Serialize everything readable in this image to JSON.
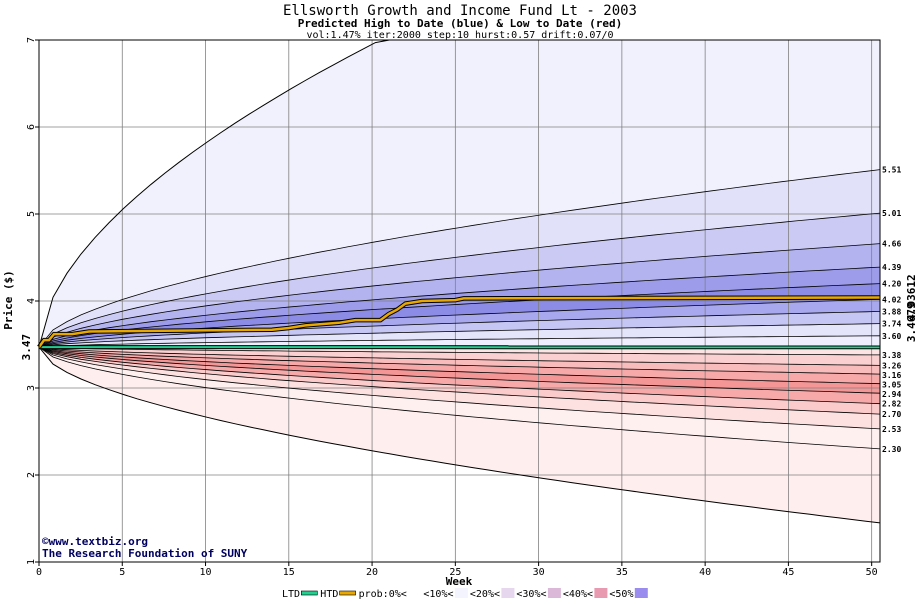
{
  "chart_data": {
    "type": "area",
    "title": "Ellsworth Growth and Income Fund Lt - 2003",
    "subtitle": "Predicted High to Date (blue) &  Low to Date (red)",
    "params": "vol:1.47% iter:2000 step:10 hurst:0.57 drift:0.07/0",
    "xlabel": "Week",
    "ylabel": "Price ($)",
    "xlim": [
      0,
      50.5
    ],
    "ylim": [
      1,
      7
    ],
    "xticks": [
      0,
      5,
      10,
      15,
      20,
      25,
      30,
      35,
      40,
      45,
      50
    ],
    "yticks": [
      1,
      2,
      3,
      4,
      5,
      6,
      7
    ],
    "start_price": 3.47,
    "start_label": "3.47",
    "htd_line": {
      "name": "HTD",
      "label": "4.03612",
      "points": [
        [
          0,
          3.47
        ],
        [
          0.3,
          3.55
        ],
        [
          0.6,
          3.55
        ],
        [
          0.9,
          3.62
        ],
        [
          2,
          3.62
        ],
        [
          3,
          3.65
        ],
        [
          14,
          3.67
        ],
        [
          15,
          3.69
        ],
        [
          16,
          3.72
        ],
        [
          18,
          3.75
        ],
        [
          19,
          3.78
        ],
        [
          20.5,
          3.78
        ],
        [
          21,
          3.85
        ],
        [
          21.5,
          3.9
        ],
        [
          22,
          3.97
        ],
        [
          23,
          4.0
        ],
        [
          25,
          4.01
        ],
        [
          25.5,
          4.03
        ],
        [
          50.5,
          4.04
        ]
      ]
    },
    "ltd_line": {
      "name": "LTD",
      "label": "3.4679",
      "points": [
        [
          0,
          3.47
        ],
        [
          50.5,
          3.4679
        ]
      ]
    },
    "upper_bands": {
      "labels": [
        "5.51",
        "5.01",
        "4.66",
        "4.39",
        "4.20",
        "4.02",
        "3.88",
        "3.74",
        "3.60"
      ],
      "finals": [
        5.51,
        5.01,
        4.66,
        4.39,
        4.2,
        4.02,
        3.88,
        3.74,
        3.6
      ],
      "colors": [
        "#f1f1fd",
        "#e1e1fa",
        "#cacaf5",
        "#b3b3f0",
        "#9c9cea",
        "#8c8ce6",
        "#a8a8ef",
        "#c6c6f5",
        "#e4e4fb"
      ]
    },
    "upper_outer": {
      "final": 7.0,
      "reaches_top_week": 20.5
    },
    "lower_bands": {
      "labels": [
        "3.38",
        "3.26",
        "3.16",
        "3.05",
        "2.94",
        "2.82",
        "2.70",
        "2.53",
        "2.30"
      ],
      "finals": [
        3.38,
        3.26,
        3.16,
        3.05,
        2.94,
        2.82,
        2.7,
        2.53,
        2.3
      ],
      "colors": [
        "#fde4e4",
        "#fbd0d0",
        "#f9bcbc",
        "#f7a8a8",
        "#f59696",
        "#f7a8a8",
        "#fbcaca",
        "#fde0e0",
        "#fff0f0"
      ]
    },
    "lower_outer": {
      "final": 1.45
    },
    "legend": [
      {
        "label": "LTD",
        "type": "line",
        "color": "#20d090"
      },
      {
        "label": "HTD",
        "type": "line",
        "color": "#e8a800"
      },
      {
        "label": "prob:0%<",
        "type": "swatch",
        "color": "#ffffff"
      },
      {
        "label": "<10%<",
        "type": "swatch",
        "color": "#f4f4ff"
      },
      {
        "label": "<20%<",
        "type": "swatch",
        "color": "#e6d6ee"
      },
      {
        "label": "<30%<",
        "type": "swatch",
        "color": "#dcb8d8"
      },
      {
        "label": "<40%<",
        "type": "swatch",
        "color": "#e89ab0"
      },
      {
        "label": "<50%",
        "type": "swatch",
        "color": "#9a8cef"
      }
    ],
    "grid": true
  },
  "credit": {
    "site": "©www.textbiz.org",
    "org": "The Research Foundation of SUNY"
  },
  "colors": {
    "htd": "#e8a800",
    "ltd": "#20d090",
    "axis": "#000000",
    "grid": "#808080"
  }
}
